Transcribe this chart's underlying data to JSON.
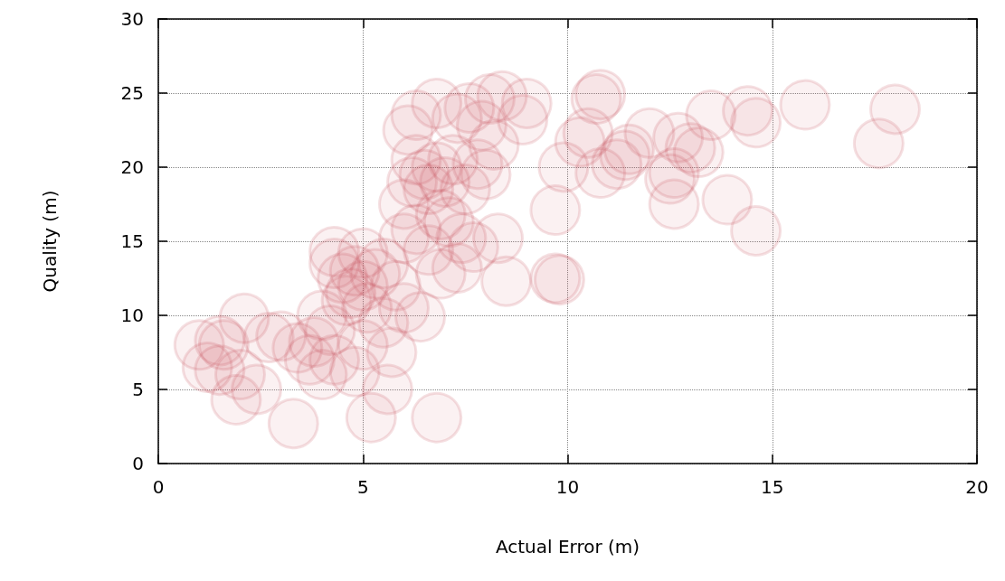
{
  "chart_data": {
    "type": "scatter",
    "xlabel": "Actual Error (m)",
    "ylabel": "Quality (m)",
    "xlim": [
      0,
      20
    ],
    "xticks": [
      0,
      5,
      10,
      15,
      20
    ],
    "ylim": [
      0,
      30
    ],
    "yticks": [
      0,
      5,
      10,
      15,
      20,
      25,
      30
    ],
    "grid": true,
    "marker": "circle",
    "series": [
      {
        "color": "#c8505a",
        "x": [
          15.8,
          18.0,
          17.6,
          14.6,
          14.4,
          13.5,
          14.6,
          13.9,
          12.5,
          12.6,
          12.6,
          13.0,
          13.2,
          12.7,
          12.0,
          11.4,
          11.2,
          10.7,
          10.8,
          10.5,
          9.9,
          9.7,
          9.8,
          9.7,
          10.3,
          10.8,
          11.5,
          9.0,
          8.9,
          8.4,
          8.5,
          8.3,
          6.2,
          6.5,
          6.8,
          7.0,
          6.3,
          6.6,
          7.2,
          6.0,
          6.1,
          6.3,
          6.8,
          7.3,
          7.6,
          7.9,
          8.1,
          7.8,
          7.5,
          7.1,
          7.4,
          7.7,
          6.9,
          6.3,
          6.6,
          6.0,
          6.9,
          7.3,
          8.0,
          8.2,
          4.5,
          4.8,
          5.0,
          4.3,
          4.7,
          5.3,
          5.5,
          5.8,
          5.1,
          5.5,
          6.0,
          6.4,
          4.3,
          5.0,
          4.6,
          4.0,
          4.2,
          3.8,
          3.4,
          3.0,
          3.7,
          4.3,
          5.0,
          5.7,
          5.6,
          5.2,
          6.8,
          3.3,
          2.4,
          1.9,
          1.5,
          1.5,
          1.6,
          1.0,
          2.1,
          1.2,
          2.7,
          4.0,
          4.8,
          2.0
        ],
        "values": [
          24.2,
          23.9,
          21.6,
          23.0,
          23.8,
          23.5,
          15.7,
          17.8,
          19.2,
          17.5,
          19.6,
          21.3,
          21.0,
          22.0,
          22.3,
          20.8,
          20.2,
          24.6,
          24.9,
          22.3,
          20.0,
          17.1,
          12.4,
          12.5,
          21.7,
          19.6,
          21.2,
          24.3,
          23.2,
          24.8,
          12.3,
          15.2,
          19.0,
          19.5,
          20.0,
          19.0,
          20.5,
          18.5,
          20.5,
          17.5,
          22.5,
          23.5,
          24.3,
          23.3,
          24.0,
          22.8,
          24.6,
          20.2,
          18.5,
          16.3,
          15.2,
          14.6,
          16.8,
          15.8,
          14.4,
          15.2,
          12.8,
          13.2,
          19.5,
          21.5,
          12.5,
          13.0,
          12.0,
          13.5,
          11.5,
          12.8,
          13.5,
          12.0,
          10.5,
          9.5,
          10.5,
          9.9,
          14.3,
          14.2,
          11.0,
          10.0,
          9.0,
          8.2,
          7.8,
          8.6,
          7.0,
          7.0,
          8.0,
          7.5,
          5.0,
          3.1,
          3.1,
          2.7,
          5.0,
          4.3,
          6.3,
          8.3,
          8.0,
          8.0,
          9.8,
          6.5,
          8.5,
          6.0,
          6.2,
          6.0
        ]
      }
    ]
  }
}
